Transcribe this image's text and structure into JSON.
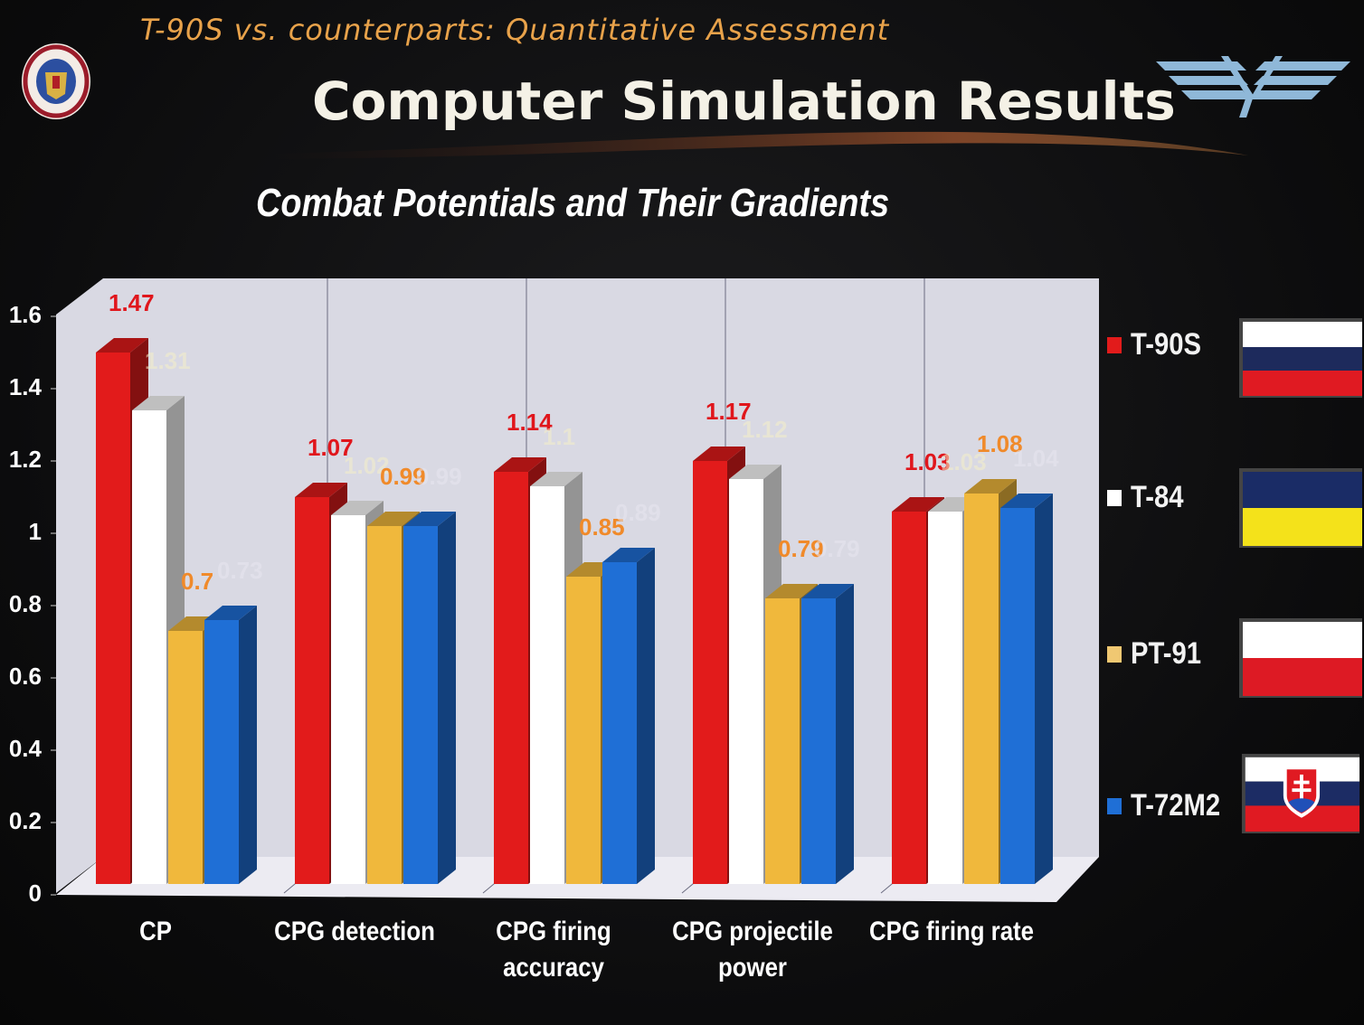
{
  "header": {
    "subtitle": "T-90S vs. counterparts: Quantitative Assessment",
    "title": "Computer Simulation Results"
  },
  "chart_data": {
    "type": "bar",
    "title": "Combat Potentials and Their Gradients",
    "categories": [
      "CP",
      "CPG detection",
      "CPG firing accuracy",
      "CPG projectile power",
      "CPG firing rate"
    ],
    "category_lines": [
      [
        "CP"
      ],
      [
        "CPG detection"
      ],
      [
        "CPG firing",
        "accuracy"
      ],
      [
        "CPG projectile",
        "power"
      ],
      [
        "CPG firing rate"
      ]
    ],
    "series": [
      {
        "name": "T-90S",
        "color": "#e21b1b",
        "values": [
          1.47,
          1.07,
          1.14,
          1.17,
          1.03
        ],
        "labels": [
          "1.47",
          "1.07",
          "1.14",
          "1.17",
          "1.03"
        ]
      },
      {
        "name": "T-84",
        "color": "#ffffff",
        "values": [
          1.31,
          1.02,
          1.1,
          1.12,
          1.03
        ],
        "labels": [
          "1.31",
          "1.02",
          "1.1",
          "1.12",
          "1.03"
        ]
      },
      {
        "name": "PT-91",
        "color": "#f0b83c",
        "values": [
          0.7,
          0.99,
          0.85,
          0.79,
          1.08
        ],
        "labels": [
          "0.7",
          "0.99",
          "0.85",
          "0.79",
          "1.08"
        ]
      },
      {
        "name": "T-72M2",
        "color": "#1f6fd6",
        "values": [
          0.73,
          0.99,
          0.89,
          0.79,
          1.04
        ],
        "labels": [
          "0.73",
          "0.99",
          "0.89",
          "0.79",
          "1.04"
        ]
      }
    ],
    "yticks": [
      "0",
      "0.2",
      "0.4",
      "0.6",
      "0.8",
      "1",
      "1.2",
      "1.4",
      "1.6"
    ],
    "ylim": [
      0,
      1.6
    ],
    "grid": false,
    "legend": "right"
  },
  "legend_flags": [
    "russia-flag",
    "ukraine-flag",
    "poland-flag",
    "slovakia-flag"
  ]
}
